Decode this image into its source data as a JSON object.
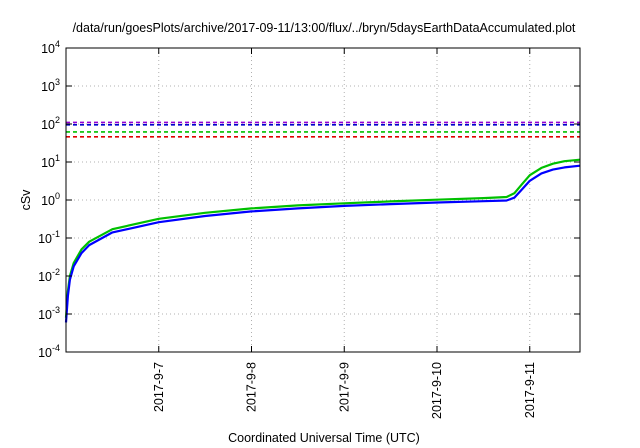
{
  "chart_data": {
    "type": "line",
    "title": "/data/run/goesPlots/archive/2017-09-11/13:00/flux/../bryn/5daysEarthDataAccumulated.plot",
    "xlabel": "Coordinated Universal Time (UTC)",
    "ylabel": "cSv",
    "yscale": "log",
    "ylim": [
      0.0001,
      10000
    ],
    "xlim": [
      "2017-09-06T00:00",
      "2017-09-11T13:00"
    ],
    "grid": true,
    "legend": "none",
    "y_ticks": [
      {
        "value": 0.0001,
        "base": "10",
        "exp": "-4"
      },
      {
        "value": 0.001,
        "base": "10",
        "exp": "-3"
      },
      {
        "value": 0.01,
        "base": "10",
        "exp": "-2"
      },
      {
        "value": 0.1,
        "base": "10",
        "exp": "-1"
      },
      {
        "value": 1,
        "base": "10",
        "exp": "0"
      },
      {
        "value": 10,
        "base": "10",
        "exp": "1"
      },
      {
        "value": 100,
        "base": "10",
        "exp": "2"
      },
      {
        "value": 1000,
        "base": "10",
        "exp": "3"
      },
      {
        "value": 10000,
        "base": "10",
        "exp": "4"
      }
    ],
    "x_ticks": [
      {
        "value": "2017-09-07T00:00",
        "label": "2017-9-7"
      },
      {
        "value": "2017-09-08T00:00",
        "label": "2017-9-8"
      },
      {
        "value": "2017-09-09T00:00",
        "label": "2017-9-9"
      },
      {
        "value": "2017-09-10T00:00",
        "label": "2017-9-10"
      },
      {
        "value": "2017-09-11T00:00",
        "label": "2017-9-11"
      }
    ],
    "reference_lines": [
      {
        "y": 110,
        "color": "#9400d3"
      },
      {
        "y": 95,
        "color": "#0000cd"
      },
      {
        "y": 62,
        "color": "#00c000"
      },
      {
        "y": 46,
        "color": "#e00000"
      }
    ],
    "series": [
      {
        "color": "#00c000",
        "x": [
          "2017-09-06T00:00",
          "2017-09-06T00:30",
          "2017-09-06T01:00",
          "2017-09-06T02:00",
          "2017-09-06T04:00",
          "2017-09-06T06:00",
          "2017-09-06T12:00",
          "2017-09-07T00:00",
          "2017-09-07T12:00",
          "2017-09-08T00:00",
          "2017-09-08T12:00",
          "2017-09-09T00:00",
          "2017-09-09T12:00",
          "2017-09-10T00:00",
          "2017-09-10T12:00",
          "2017-09-10T18:00",
          "2017-09-10T20:00",
          "2017-09-10T22:00",
          "2017-09-11T00:00",
          "2017-09-11T03:00",
          "2017-09-11T06:00",
          "2017-09-11T09:00",
          "2017-09-11T13:00"
        ],
        "y": [
          0.0008,
          0.004,
          0.01,
          0.022,
          0.05,
          0.08,
          0.17,
          0.32,
          0.46,
          0.6,
          0.72,
          0.82,
          0.92,
          1.02,
          1.12,
          1.2,
          1.5,
          2.6,
          4.5,
          7,
          9,
          10.5,
          11.5
        ]
      },
      {
        "color": "#0000ff",
        "x": [
          "2017-09-06T00:00",
          "2017-09-06T00:30",
          "2017-09-06T01:00",
          "2017-09-06T02:00",
          "2017-09-06T04:00",
          "2017-09-06T06:00",
          "2017-09-06T12:00",
          "2017-09-07T00:00",
          "2017-09-07T12:00",
          "2017-09-08T00:00",
          "2017-09-08T12:00",
          "2017-09-09T00:00",
          "2017-09-09T12:00",
          "2017-09-10T00:00",
          "2017-09-10T12:00",
          "2017-09-10T18:00",
          "2017-09-10T20:00",
          "2017-09-10T22:00",
          "2017-09-11T00:00",
          "2017-09-11T03:00",
          "2017-09-11T06:00",
          "2017-09-11T09:00",
          "2017-09-11T13:00"
        ],
        "y": [
          0.0006,
          0.003,
          0.008,
          0.018,
          0.04,
          0.065,
          0.14,
          0.26,
          0.38,
          0.5,
          0.6,
          0.7,
          0.78,
          0.86,
          0.93,
          0.97,
          1.15,
          1.9,
          3.2,
          5,
          6.3,
          7.2,
          8
        ]
      }
    ]
  }
}
